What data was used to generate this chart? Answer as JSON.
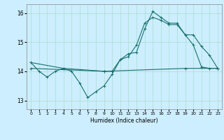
{
  "xlabel": "Humidex (Indice chaleur)",
  "bg_color": "#cceeff",
  "line_color": "#1a7070",
  "grid_color": "#aaddcc",
  "xlim": [
    -0.5,
    23.5
  ],
  "ylim": [
    12.7,
    16.3
  ],
  "yticks": [
    13,
    14,
    15,
    16
  ],
  "xticks": [
    0,
    1,
    2,
    3,
    4,
    5,
    6,
    7,
    8,
    9,
    10,
    11,
    12,
    13,
    14,
    15,
    16,
    17,
    18,
    19,
    20,
    21,
    22,
    23
  ],
  "series1_x": [
    0,
    1,
    2,
    3,
    4,
    5,
    6,
    7,
    8,
    9,
    10,
    11,
    12,
    13,
    14,
    15,
    16,
    17,
    18,
    19,
    20,
    21,
    22,
    23
  ],
  "series1_y": [
    14.3,
    14.0,
    13.8,
    14.0,
    14.1,
    14.0,
    13.6,
    13.1,
    13.3,
    13.5,
    13.9,
    14.4,
    14.5,
    14.9,
    15.65,
    15.85,
    15.75,
    15.6,
    15.6,
    15.25,
    14.9,
    14.15,
    14.1,
    14.1
  ],
  "series2_x": [
    0,
    4,
    9,
    10,
    11,
    12,
    13,
    14,
    15,
    16,
    17,
    18,
    19,
    20,
    21,
    22,
    23
  ],
  "series2_y": [
    14.3,
    14.1,
    14.0,
    14.0,
    14.4,
    14.6,
    14.65,
    15.45,
    16.05,
    15.85,
    15.65,
    15.65,
    15.25,
    15.25,
    14.85,
    14.55,
    14.1
  ],
  "series3_x": [
    0,
    9,
    19,
    23
  ],
  "series3_y": [
    14.1,
    14.0,
    14.1,
    14.1
  ]
}
